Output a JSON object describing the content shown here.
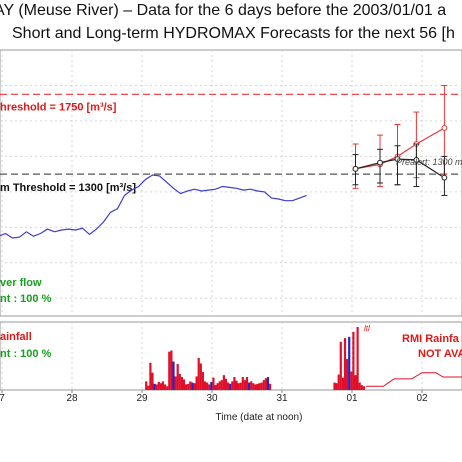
{
  "title_line1": "AY (Meuse River) – Data for the 6 days before the 2003/01/01 a",
  "title_line2": "Short and Long-term HYDROMAX Forecasts for the next 56 [h",
  "thresholds": {
    "alarm_label": "hreshold = 1750 [m³/s]",
    "alert_label": "m Threshold = 1300 [m³/s]",
    "alarm_value": 1750,
    "alert_value": 1300,
    "alarm_color": "#e8363a",
    "alert_color": "#555555"
  },
  "prealert_label": "Prealert: 1300 m",
  "river_flow_label": "ver flow",
  "river_flow_pct": "nt : 100 %",
  "rainfall_label": "ainfall",
  "rainfall_pct": "nt : 100 %",
  "rmi_label_1": "RMI Rainfa",
  "rmi_label_2": "NOT AVA",
  "rmi_tag": "ltl",
  "x_axis_label": "Time (date at noon)",
  "colors": {
    "flow_line": "#3b3bd6",
    "rain_bar": "#e0102b",
    "rain_bar_alt": "#2626c8",
    "forecast_red": "#e8363a",
    "forecast_black": "#222222",
    "green_text": "#18a020",
    "red_text": "#e01818"
  },
  "chart_data": {
    "type": "line",
    "x_ticks": [
      "7",
      "28",
      "29",
      "30",
      "31",
      "01",
      "02"
    ],
    "flow": {
      "unit": "m³/s",
      "ylim": [
        500,
        2000
      ],
      "x": [
        -0.95,
        -0.85,
        -0.75,
        -0.65,
        -0.55,
        -0.45,
        -0.35,
        -0.25,
        -0.15,
        -0.05,
        0.05,
        0.15,
        0.25,
        0.35,
        0.45,
        0.55,
        0.65,
        0.75,
        0.85,
        0.95,
        1.05,
        1.15,
        1.25,
        1.35,
        1.45,
        1.55,
        1.65,
        1.75,
        1.85,
        1.95,
        2.05,
        2.15,
        2.25,
        2.35,
        2.45,
        2.55,
        2.65,
        2.75,
        2.85,
        2.95,
        3.05,
        3.15,
        3.25,
        3.35,
        3.45,
        3.55,
        3.65,
        3.75,
        3.85,
        3.95,
        4.05,
        4.15,
        4.25,
        4.35
      ],
      "values": [
        1005,
        985,
        1030,
        960,
        905,
        940,
        975,
        955,
        960,
        950,
        965,
        940,
        945,
        975,
        950,
        965,
        990,
        975,
        985,
        990,
        985,
        995,
        960,
        990,
        1030,
        1085,
        1105,
        1180,
        1210,
        1230,
        1270,
        1295,
        1290,
        1255,
        1220,
        1190,
        1205,
        1215,
        1205,
        1210,
        1215,
        1230,
        1225,
        1220,
        1210,
        1215,
        1205,
        1200,
        1165,
        1160,
        1150,
        1150,
        1165,
        1180
      ]
    },
    "forecast": [
      {
        "name": "",
        "x": [
          5.05,
          5.4,
          5.65,
          5.92,
          6.32
        ],
        "values": [
          1330,
          1355,
          1400,
          1470,
          1560
        ],
        "err_low": [
          1220,
          1230,
          1240,
          1280,
          1300
        ],
        "err_high": [
          1470,
          1520,
          1580,
          1650,
          1800
        ]
      },
      {
        "name": "",
        "x": [
          5.05,
          5.4,
          5.65,
          5.92,
          6.32
        ],
        "values": [
          1330,
          1365,
          1385,
          1380,
          1280
        ],
        "err_low": [
          1240,
          1250,
          1240,
          1230,
          1180
        ],
        "err_high": [
          1410,
          1440,
          1460,
          1470,
          1400
        ]
      }
    ],
    "rainfall": {
      "x": [
        2.06,
        2.09,
        2.12,
        2.15,
        2.18,
        2.21,
        2.24,
        2.27,
        2.3,
        2.33,
        2.36,
        2.39,
        2.42,
        2.45,
        2.48,
        2.51,
        2.54,
        2.57,
        2.6,
        2.63,
        2.66,
        2.69,
        2.72,
        2.75,
        2.78,
        2.81,
        2.84,
        2.87,
        2.9,
        2.93,
        2.96,
        2.99,
        3.02,
        3.05,
        3.08,
        3.11,
        3.14,
        3.17,
        3.2,
        3.23,
        3.26,
        3.29,
        3.32,
        3.35,
        3.38,
        3.41,
        3.44,
        3.47,
        3.5,
        3.53,
        3.56,
        3.59,
        3.62,
        3.65,
        3.68,
        3.71,
        3.74,
        3.77,
        3.8,
        3.83,
        4.75,
        4.78,
        4.81,
        4.84,
        4.87,
        4.9,
        4.93,
        4.96,
        4.99,
        5.02,
        5.05,
        5.08,
        5.11,
        5.14,
        5.17
      ],
      "values": [
        0.7,
        0.35,
        2.2,
        1.4,
        0.5,
        0.45,
        0.65,
        0.55,
        0.7,
        0.45,
        0.3,
        3.1,
        3.2,
        2.3,
        1.1,
        2.1,
        1.3,
        1.05,
        0.85,
        0.45,
        0.5,
        0.7,
        0.6,
        0.55,
        1.1,
        2.6,
        2.15,
        1.45,
        0.7,
        0.6,
        0.45,
        0.65,
        1.0,
        0.4,
        0.55,
        0.7,
        0.8,
        1.2,
        0.9,
        0.6,
        0.5,
        0.7,
        1.05,
        0.75,
        0.55,
        0.6,
        1.05,
        0.8,
        1.05,
        0.6,
        0.7,
        0.55,
        0.45,
        0.5,
        0.55,
        0.6,
        0.8,
        0.95,
        1.05,
        0.5,
        0.6,
        0.55,
        1.25,
        3.9,
        1.0,
        4.2,
        2.5,
        4.3,
        1.5,
        4.7,
        1.2,
        5.1,
        0.6,
        0.4,
        0.3
      ],
      "ylim": [
        0,
        5.5
      ]
    },
    "rmi_forecast": {
      "x": [
        5.2,
        5.45,
        5.6,
        5.85,
        6.0,
        6.2,
        6.3,
        6.6
      ],
      "values": [
        0.3,
        0.3,
        0.9,
        0.9,
        1.4,
        1.4,
        1.05,
        1.05
      ]
    }
  }
}
